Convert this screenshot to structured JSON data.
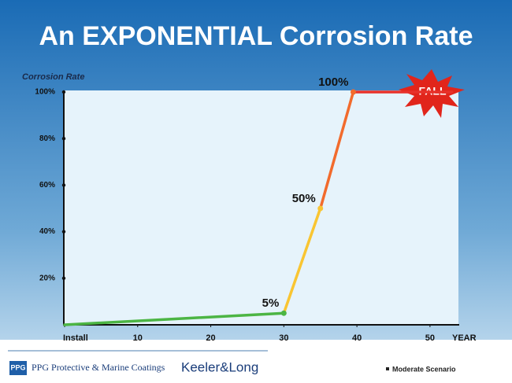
{
  "chart_data": {
    "type": "line",
    "title": "An EXPONENTIAL Corrosion Rate",
    "y_label": "Corrosion Rate",
    "x_label": "YEAR",
    "annotation": "FALL",
    "xlim": [
      0,
      54
    ],
    "xticks": [
      {
        "value": 0,
        "label": "Install"
      },
      10,
      20,
      30,
      40,
      50
    ],
    "ylim": [
      0,
      100
    ],
    "yticks": [
      {
        "value": 20,
        "label": "20%"
      },
      {
        "value": 40,
        "label": "40%"
      },
      {
        "value": 60,
        "label": "60%"
      },
      {
        "value": 80,
        "label": "80%"
      },
      {
        "value": 100,
        "label": "100%"
      }
    ],
    "series": [
      {
        "name": "Moderate Scenario",
        "color": "#222222",
        "x": [
          0,
          30,
          35,
          39.5,
          53
        ],
        "values": [
          0,
          5,
          50,
          100,
          100
        ],
        "value_labels": [
          null,
          "5%",
          "50%",
          "100%",
          null
        ],
        "segment_colors": [
          "#4cb544",
          "#f9c532",
          "#f26b2d",
          "#e7312a"
        ]
      }
    ]
  },
  "footer": {
    "company": "PPG Protective & Marine Coatings",
    "logo": "PPG",
    "partner": "Keeler&Long"
  }
}
